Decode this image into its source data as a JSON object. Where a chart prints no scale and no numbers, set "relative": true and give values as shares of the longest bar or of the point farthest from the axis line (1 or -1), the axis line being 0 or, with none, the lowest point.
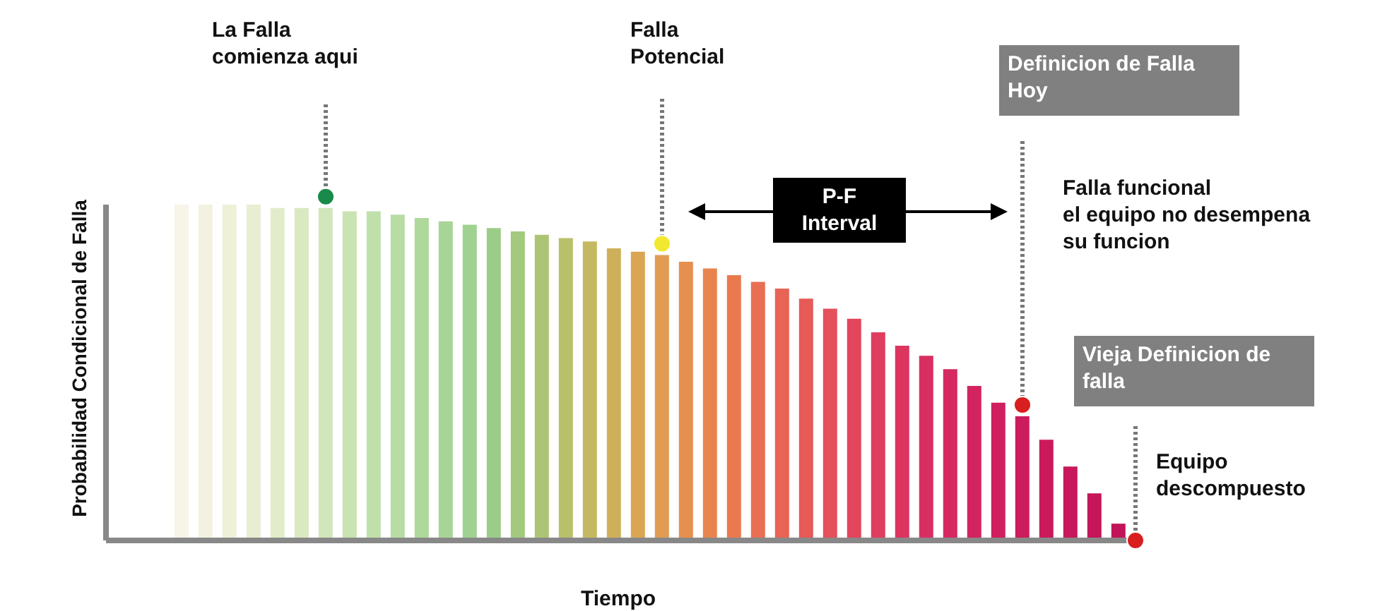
{
  "chart_data": {
    "type": "bar",
    "relative": true,
    "xlabel": "Tiempo",
    "ylabel": "Probabilidad Condicional de Falla",
    "categories": [
      null,
      null,
      null,
      null,
      null,
      null,
      null,
      null,
      null,
      null,
      null,
      null,
      null,
      null,
      null,
      null,
      null,
      null,
      null,
      null,
      null,
      null,
      null,
      null,
      null,
      null,
      null,
      null,
      null,
      null,
      null,
      null,
      null,
      null,
      null,
      null,
      null,
      null,
      null,
      null
    ],
    "series": [
      {
        "values": [
          1.0,
          1.0,
          1.0,
          1.0,
          0.99,
          0.99,
          0.99,
          0.98,
          0.98,
          0.97,
          0.96,
          0.95,
          0.94,
          0.93,
          0.92,
          0.91,
          0.9,
          0.89,
          0.87,
          0.86,
          0.85,
          0.83,
          0.81,
          0.79,
          0.77,
          0.75,
          0.72,
          0.69,
          0.66,
          0.62,
          0.58,
          0.55,
          0.51,
          0.46,
          0.41,
          0.37,
          0.3,
          0.22,
          0.14,
          0.05
        ],
        "colors": [
          "#f7f4e8",
          "#f3f1e0",
          "#eef0d8",
          "#e8eed2",
          "#e2ecca",
          "#dae9c2",
          "#d2e6bb",
          "#c9e3b3",
          "#c0e0ab",
          "#b7dca4",
          "#aed89c",
          "#a6d596",
          "#9fd290",
          "#9ccd88",
          "#a2c97e",
          "#acc574",
          "#b8c06a",
          "#c4b960",
          "#cfb05a",
          "#d9a655",
          "#e19b52",
          "#e69050",
          "#e8854f",
          "#e97a50",
          "#e96f52",
          "#e86455",
          "#e65a58",
          "#e4505b",
          "#e2465d",
          "#df3d5f",
          "#dc3560",
          "#d92e61",
          "#d62861",
          "#d32360",
          "#d01f5f",
          "#cd1c5e",
          "#ca1a5c",
          "#c7185b",
          "#c41659",
          "#c11458"
        ]
      }
    ],
    "annotations": [
      "La Falla\ncomienza aqui",
      "Falla\nPotencial",
      "P-F\nInterval",
      "Definicion de Falla\nHoy",
      "Falla funcional\nel equipo no desempena\nsu funcion",
      "Vieja Definicion de\nfalla",
      "Equipo\ndescompuesto"
    ]
  }
}
